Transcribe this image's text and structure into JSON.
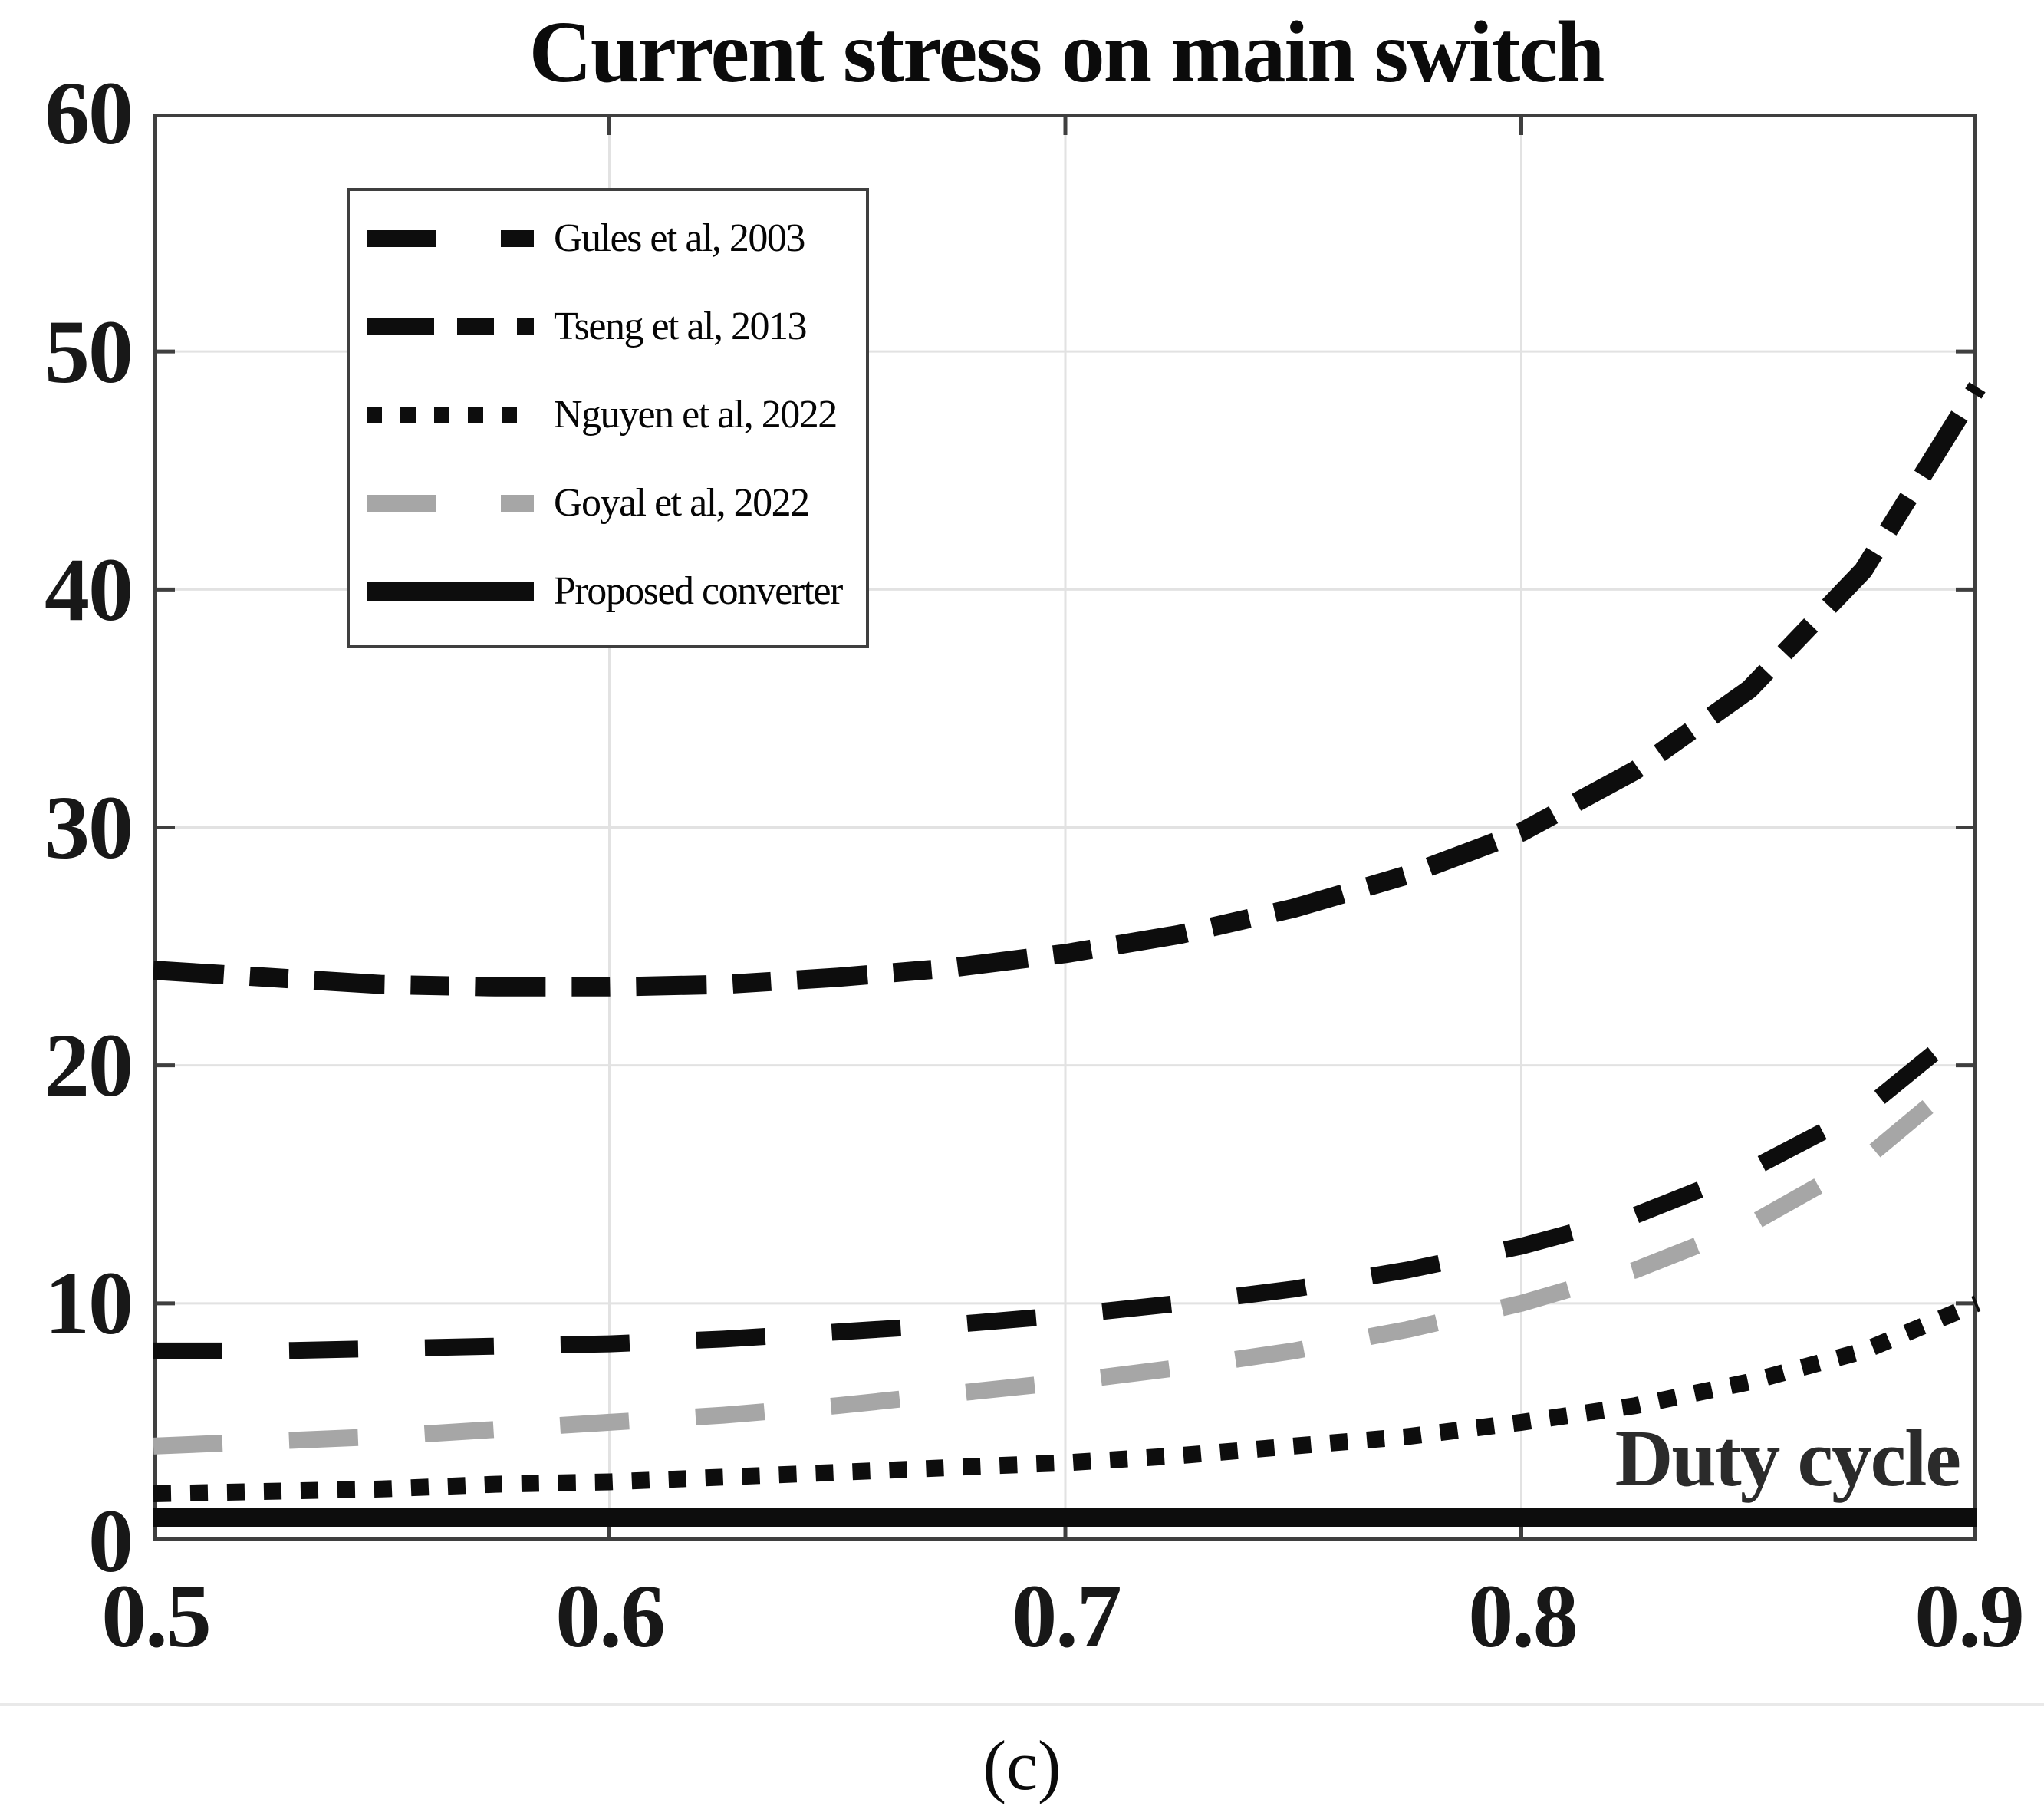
{
  "figure": {
    "caption": "(c)"
  },
  "chart_data": {
    "type": "line",
    "title": "Current stress on main switch",
    "xlabel": "Duty cycle",
    "ylabel": "",
    "xlim": [
      0.5,
      0.9
    ],
    "ylim": [
      0,
      60
    ],
    "x_ticks": [
      "0.5",
      "0.6",
      "0.7",
      "0.8",
      "0.9"
    ],
    "y_ticks": [
      "60",
      "50",
      "40",
      "30",
      "20",
      "10",
      "0"
    ],
    "grid": true,
    "grid_x": [
      0.6,
      0.7,
      0.8
    ],
    "grid_y": [
      10,
      20,
      30,
      40,
      50
    ],
    "legend_position": "top-left",
    "x": [
      0.5,
      0.525,
      0.55,
      0.575,
      0.6,
      0.625,
      0.65,
      0.675,
      0.7,
      0.725,
      0.75,
      0.775,
      0.8,
      0.825,
      0.85,
      0.875,
      0.9
    ],
    "series": [
      {
        "name": "Gules et al, 2003",
        "style": "dashed",
        "color": "#0d0d0d",
        "values": [
          8.0,
          8.0,
          8.1,
          8.2,
          8.3,
          8.5,
          8.8,
          9.1,
          9.5,
          10.0,
          10.6,
          11.4,
          12.4,
          13.7,
          15.6,
          18.1,
          22.0
        ]
      },
      {
        "name": "Tseng et al, 2013",
        "style": "dash-dot",
        "color": "#0d0d0d",
        "values": [
          24.0,
          23.7,
          23.4,
          23.3,
          23.3,
          23.4,
          23.7,
          24.1,
          24.7,
          25.5,
          26.6,
          28.0,
          29.8,
          32.4,
          35.8,
          40.8,
          48.5
        ]
      },
      {
        "name": "Nguyen et al, 2022",
        "style": "dotted",
        "color": "#0d0d0d",
        "values": [
          2.0,
          2.1,
          2.2,
          2.4,
          2.5,
          2.7,
          2.9,
          3.1,
          3.3,
          3.6,
          4.0,
          4.4,
          5.0,
          5.7,
          6.7,
          8.0,
          10.0
        ]
      },
      {
        "name": "Goyal et al, 2022",
        "style": "dashed",
        "color": "#a6a6a6",
        "values": [
          4.0,
          4.2,
          4.4,
          4.7,
          5.0,
          5.3,
          5.7,
          6.2,
          6.7,
          7.3,
          8.0,
          8.9,
          10.0,
          11.4,
          13.3,
          16.0,
          20.0
        ]
      },
      {
        "name": "Proposed converter",
        "style": "solid",
        "color": "#0d0d0d",
        "values": [
          1.0,
          1.0,
          1.0,
          1.0,
          1.0,
          1.0,
          1.0,
          1.0,
          1.0,
          1.0,
          1.0,
          1.0,
          1.0,
          1.0,
          1.0,
          1.0,
          1.0
        ]
      }
    ]
  }
}
